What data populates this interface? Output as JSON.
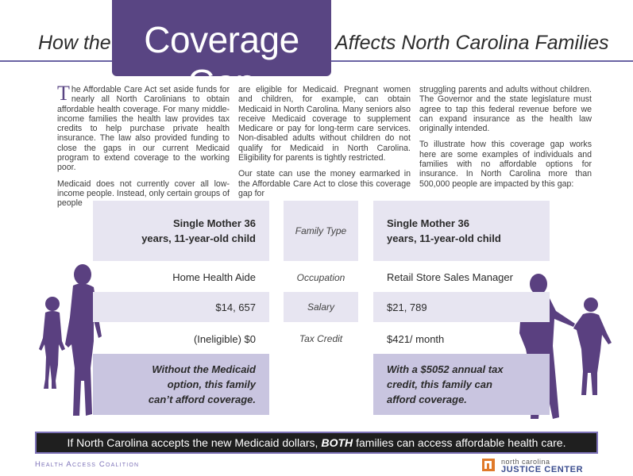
{
  "header": {
    "title_prefix": "How the",
    "title_highlight": "Coverage Gap",
    "title_suffix": "Affects North Carolina Families"
  },
  "intro": {
    "col1_p1_dropcap": "T",
    "col1_p1": "he Affordable Care Act set aside funds for nearly all North Carolinians to obtain affordable health coverage. For many middle-income families the health law provides tax credits to help purchase private health insurance. The law also provided funding to close the gaps in our current Medicaid program to extend coverage to the working poor.",
    "col1_p2": "Medicaid does not currently cover all low-income people. Instead, only certain groups of people",
    "col2_p1": "are eligible for Medicaid. Pregnant women and children, for example, can obtain Medicaid in North Carolina. Many seniors also receive Medicaid coverage to supplement Medicare or pay for long-term care services. Non-disabled adults without children do not qualify for Medicaid in North Carolina. Eligibility for parents is tightly restricted.",
    "col2_p2": "Our state can use the money earmarked in the Affordable Care Act to close this coverage gap for",
    "col3_p1": "struggling parents and adults without children. The Governor and the state legislature must agree to tap this federal revenue before we can expand insurance as the health law originally intended.",
    "col3_p2": "To illustrate how this coverage gap works here are some examples of individuals and families with no affordable options for insurance. In North Carolina more than 500,000 people are impacted by this gap:"
  },
  "comparison": {
    "labels": {
      "family_type": "Family Type",
      "occupation": "Occupation",
      "salary": "Salary",
      "tax_credit": "Tax Credit"
    },
    "left": {
      "family_type": "Single Mother 36 years, 11-year-old child",
      "occupation": "Home Health Aide",
      "salary": "$14, 657",
      "tax_credit": "(Ineligible) $0",
      "summary": "Without the Medicaid option, this family can’t afford coverage."
    },
    "right": {
      "family_type": "Single Mother 36 years, 11-year-old child",
      "occupation": "Retail Store Sales Manager",
      "salary": "$21, 789",
      "tax_credit": "$421/ month",
      "summary": "With a $5052 annual tax credit, this family can afford coverage."
    }
  },
  "banner": {
    "before": "If North Carolina accepts the new Medicaid dollars,",
    "emphasis": "BOTH",
    "after": "families can access affordable health care."
  },
  "footer": {
    "organization": "Health Access Coalition",
    "logo_top": "north carolina",
    "logo_bottom": "JUSTICE CENTER"
  },
  "colors": {
    "accent_purple": "#594583",
    "light_lavender": "#e7e5f1",
    "medium_lavender": "#c9c5e0",
    "silhouette": "#5a4080",
    "banner_bg": "#1f1f1f",
    "logo_orange": "#e07a2a",
    "logo_blue": "#3a4c8f"
  }
}
